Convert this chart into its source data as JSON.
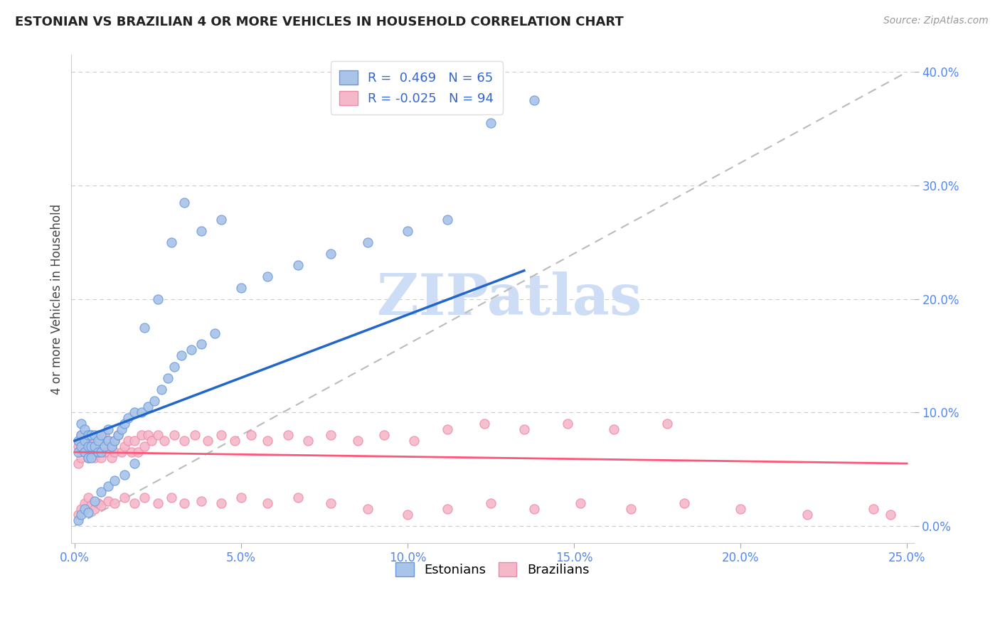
{
  "title": "ESTONIAN VS BRAZILIAN 4 OR MORE VEHICLES IN HOUSEHOLD CORRELATION CHART",
  "source": "Source: ZipAtlas.com",
  "ylabel": "4 or more Vehicles in Household",
  "color_estonian_fill": "#a8c4e8",
  "color_estonian_edge": "#6699dd",
  "color_brazilian_fill": "#f5b8c8",
  "color_brazilian_edge": "#ee88aa",
  "color_estonian_line": "#2266cc",
  "color_brazilian_line": "#ff5577",
  "color_diagonal": "#bbbbbb",
  "color_grid": "#cccccc",
  "color_tick": "#5588ee",
  "watermark_color": "#ccddf5",
  "xlim": [
    0.0,
    0.25
  ],
  "ylim": [
    0.0,
    0.4
  ],
  "x_ticks": [
    0.0,
    0.05,
    0.1,
    0.15,
    0.2,
    0.25
  ],
  "y_ticks": [
    0.0,
    0.1,
    0.2,
    0.3,
    0.4
  ],
  "estonian_x": [
    0.001,
    0.001,
    0.002,
    0.002,
    0.002,
    0.003,
    0.003,
    0.003,
    0.004,
    0.004,
    0.004,
    0.005,
    0.005,
    0.005,
    0.006,
    0.006,
    0.007,
    0.007,
    0.008,
    0.008,
    0.009,
    0.01,
    0.01,
    0.011,
    0.012,
    0.013,
    0.014,
    0.015,
    0.016,
    0.018,
    0.02,
    0.022,
    0.024,
    0.026,
    0.028,
    0.03,
    0.032,
    0.035,
    0.038,
    0.042,
    0.001,
    0.002,
    0.003,
    0.004,
    0.006,
    0.008,
    0.01,
    0.012,
    0.015,
    0.018,
    0.021,
    0.025,
    0.029,
    0.033,
    0.038,
    0.044,
    0.05,
    0.058,
    0.067,
    0.077,
    0.088,
    0.1,
    0.112,
    0.125,
    0.138
  ],
  "estonian_y": [
    0.065,
    0.075,
    0.07,
    0.08,
    0.09,
    0.065,
    0.075,
    0.085,
    0.06,
    0.07,
    0.08,
    0.06,
    0.07,
    0.08,
    0.07,
    0.08,
    0.065,
    0.075,
    0.065,
    0.08,
    0.07,
    0.075,
    0.085,
    0.07,
    0.075,
    0.08,
    0.085,
    0.09,
    0.095,
    0.1,
    0.1,
    0.105,
    0.11,
    0.12,
    0.13,
    0.14,
    0.15,
    0.155,
    0.16,
    0.17,
    0.005,
    0.01,
    0.015,
    0.012,
    0.022,
    0.03,
    0.035,
    0.04,
    0.045,
    0.055,
    0.175,
    0.2,
    0.25,
    0.285,
    0.26,
    0.27,
    0.21,
    0.22,
    0.23,
    0.24,
    0.25,
    0.26,
    0.27,
    0.355,
    0.375
  ],
  "brazilian_x": [
    0.001,
    0.001,
    0.002,
    0.002,
    0.002,
    0.003,
    0.003,
    0.003,
    0.004,
    0.004,
    0.005,
    0.005,
    0.005,
    0.006,
    0.006,
    0.007,
    0.007,
    0.008,
    0.008,
    0.009,
    0.009,
    0.01,
    0.01,
    0.011,
    0.011,
    0.012,
    0.012,
    0.013,
    0.014,
    0.015,
    0.016,
    0.017,
    0.018,
    0.019,
    0.02,
    0.021,
    0.022,
    0.023,
    0.025,
    0.027,
    0.03,
    0.033,
    0.036,
    0.04,
    0.044,
    0.048,
    0.053,
    0.058,
    0.064,
    0.07,
    0.077,
    0.085,
    0.093,
    0.102,
    0.112,
    0.123,
    0.135,
    0.148,
    0.162,
    0.178,
    0.001,
    0.002,
    0.003,
    0.004,
    0.005,
    0.006,
    0.007,
    0.008,
    0.01,
    0.012,
    0.015,
    0.018,
    0.021,
    0.025,
    0.029,
    0.033,
    0.038,
    0.044,
    0.05,
    0.058,
    0.067,
    0.077,
    0.088,
    0.1,
    0.112,
    0.125,
    0.138,
    0.152,
    0.167,
    0.183,
    0.2,
    0.22,
    0.24,
    0.245
  ],
  "brazilian_y": [
    0.055,
    0.07,
    0.06,
    0.075,
    0.08,
    0.065,
    0.07,
    0.08,
    0.06,
    0.07,
    0.075,
    0.065,
    0.08,
    0.06,
    0.075,
    0.065,
    0.08,
    0.06,
    0.075,
    0.065,
    0.08,
    0.065,
    0.075,
    0.06,
    0.07,
    0.065,
    0.075,
    0.08,
    0.065,
    0.07,
    0.075,
    0.065,
    0.075,
    0.065,
    0.08,
    0.07,
    0.08,
    0.075,
    0.08,
    0.075,
    0.08,
    0.075,
    0.08,
    0.075,
    0.08,
    0.075,
    0.08,
    0.075,
    0.08,
    0.075,
    0.08,
    0.075,
    0.08,
    0.075,
    0.085,
    0.09,
    0.085,
    0.09,
    0.085,
    0.09,
    0.01,
    0.015,
    0.02,
    0.025,
    0.018,
    0.015,
    0.02,
    0.018,
    0.022,
    0.02,
    0.025,
    0.02,
    0.025,
    0.02,
    0.025,
    0.02,
    0.022,
    0.02,
    0.025,
    0.02,
    0.025,
    0.02,
    0.015,
    0.01,
    0.015,
    0.02,
    0.015,
    0.02,
    0.015,
    0.02,
    0.015,
    0.01,
    0.015,
    0.01
  ]
}
